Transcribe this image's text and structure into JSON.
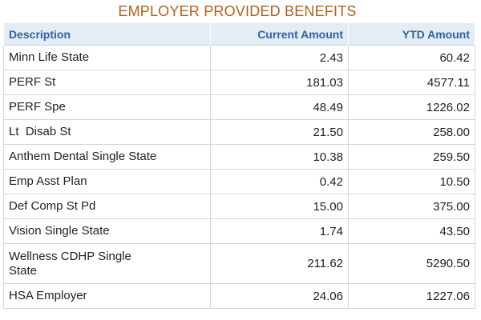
{
  "title": "EMPLOYER PROVIDED BENEFITS",
  "columns": [
    "Description",
    "Current Amount",
    "YTD Amount"
  ],
  "rows": [
    {
      "description": "Minn Life State",
      "current": "2.43",
      "ytd": "60.42"
    },
    {
      "description": "PERF St",
      "current": "181.03",
      "ytd": "4577.11"
    },
    {
      "description": "PERF Spe",
      "current": "48.49",
      "ytd": "1226.02"
    },
    {
      "description": "Lt  Disab St",
      "current": "21.50",
      "ytd": "258.00"
    },
    {
      "description": "Anthem Dental Single State",
      "current": "10.38",
      "ytd": "259.50"
    },
    {
      "description": "Emp Asst Plan",
      "current": "0.42",
      "ytd": "10.50"
    },
    {
      "description": "Def Comp St Pd",
      "current": "15.00",
      "ytd": "375.00"
    },
    {
      "description": "Vision Single State",
      "current": "1.74",
      "ytd": "43.50"
    },
    {
      "description": "Wellness CDHP Single State",
      "current": "211.62",
      "ytd": "5290.50"
    },
    {
      "description": "HSA Employer",
      "current": "24.06",
      "ytd": "1227.06"
    }
  ],
  "colors": {
    "title": "#b0621c",
    "header_text": "#2f64a6",
    "header_bg": "#e4ecf4",
    "border": "#d6d6d6"
  }
}
